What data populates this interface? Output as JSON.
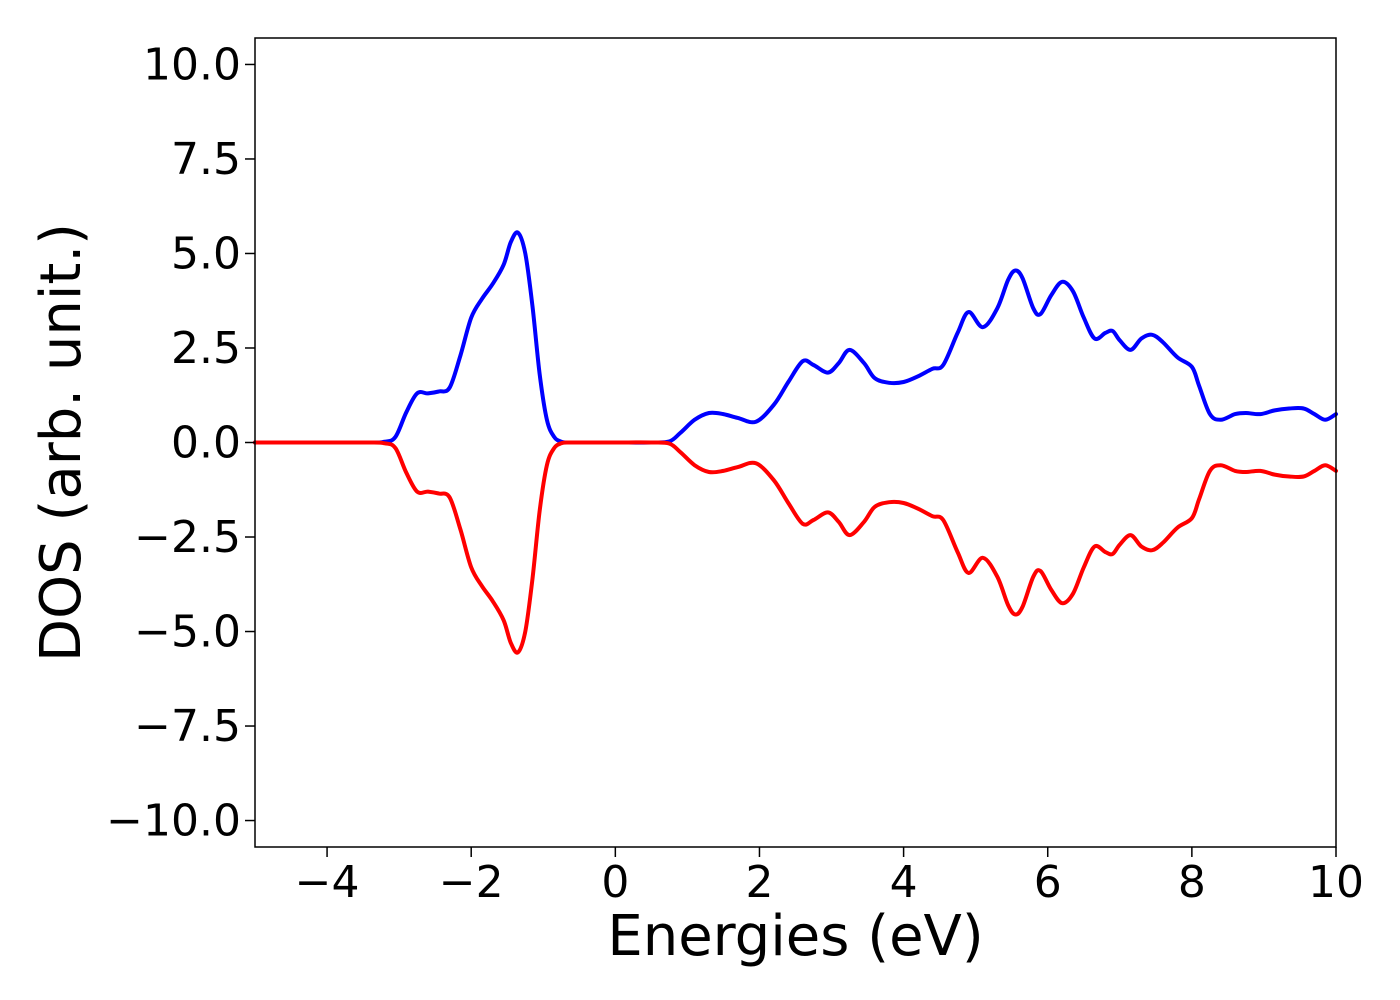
{
  "chart_data": {
    "type": "line",
    "title": "",
    "xlabel": "Energies (eV)",
    "ylabel": "DOS (arb. unit.)",
    "xlim": [
      -5,
      10
    ],
    "ylim": [
      -10.7,
      10.7
    ],
    "xticks": [
      -4,
      -2,
      0,
      2,
      4,
      6,
      8,
      10
    ],
    "xtick_labels": [
      "−4",
      "−2",
      "0",
      "2",
      "4",
      "6",
      "8",
      "10"
    ],
    "yticks": [
      10.0,
      7.5,
      5.0,
      2.5,
      0.0,
      -2.5,
      -5.0,
      -7.5,
      -10.0
    ],
    "ytick_labels": [
      "10.0",
      "7.5",
      "5.0",
      "2.5",
      "0.0",
      "−2.5",
      "−5.0",
      "−7.5",
      "−10.0"
    ],
    "grid": false,
    "legend": "none",
    "series": [
      {
        "color": "#0000ff",
        "x": [
          -5,
          -3.5,
          -3.2,
          -3.05,
          -2.9,
          -2.75,
          -2.6,
          -2.45,
          -2.3,
          -2.15,
          -2.0,
          -1.85,
          -1.7,
          -1.55,
          -1.45,
          -1.35,
          -1.25,
          -1.15,
          -1.05,
          -0.95,
          -0.85,
          -0.75,
          -0.65,
          -0.55,
          0.0,
          0.5,
          0.75,
          0.9,
          1.1,
          1.3,
          1.5,
          1.7,
          1.95,
          2.2,
          2.4,
          2.6,
          2.75,
          2.95,
          3.1,
          3.25,
          3.45,
          3.6,
          3.8,
          4.0,
          4.2,
          4.4,
          4.55,
          4.75,
          4.9,
          5.1,
          5.3,
          5.45,
          5.55,
          5.65,
          5.8,
          5.9,
          6.05,
          6.2,
          6.35,
          6.5,
          6.65,
          6.8,
          6.9,
          7.0,
          7.15,
          7.3,
          7.45,
          7.6,
          7.8,
          8.0,
          8.1,
          8.25,
          8.4,
          8.6,
          8.75,
          8.95,
          9.15,
          9.35,
          9.55,
          9.7,
          9.85,
          10.0
        ],
        "y": [
          0,
          0,
          0.02,
          0.15,
          0.8,
          1.3,
          1.3,
          1.35,
          1.45,
          2.3,
          3.3,
          3.8,
          4.2,
          4.7,
          5.3,
          5.55,
          5.0,
          3.6,
          1.8,
          0.6,
          0.15,
          0.02,
          0.0,
          0.0,
          0.0,
          0.0,
          0.03,
          0.25,
          0.6,
          0.78,
          0.75,
          0.65,
          0.55,
          1.0,
          1.6,
          2.15,
          2.05,
          1.85,
          2.1,
          2.45,
          2.1,
          1.7,
          1.58,
          1.6,
          1.75,
          1.95,
          2.05,
          2.9,
          3.45,
          3.05,
          3.55,
          4.3,
          4.55,
          4.35,
          3.55,
          3.4,
          3.9,
          4.25,
          4.0,
          3.3,
          2.75,
          2.9,
          2.95,
          2.7,
          2.45,
          2.75,
          2.85,
          2.65,
          2.25,
          2.0,
          1.5,
          0.75,
          0.6,
          0.75,
          0.78,
          0.75,
          0.85,
          0.9,
          0.9,
          0.75,
          0.6,
          0.75
        ]
      },
      {
        "color": "#ff0000",
        "x": [
          -5,
          -3.5,
          -3.2,
          -3.05,
          -2.9,
          -2.75,
          -2.6,
          -2.45,
          -2.3,
          -2.15,
          -2.0,
          -1.85,
          -1.7,
          -1.55,
          -1.45,
          -1.35,
          -1.25,
          -1.15,
          -1.05,
          -0.95,
          -0.85,
          -0.75,
          -0.65,
          -0.55,
          0.0,
          0.5,
          0.75,
          0.9,
          1.1,
          1.3,
          1.5,
          1.7,
          1.95,
          2.2,
          2.4,
          2.6,
          2.75,
          2.95,
          3.1,
          3.25,
          3.45,
          3.6,
          3.8,
          4.0,
          4.2,
          4.4,
          4.55,
          4.75,
          4.9,
          5.1,
          5.3,
          5.45,
          5.55,
          5.65,
          5.8,
          5.9,
          6.05,
          6.2,
          6.35,
          6.5,
          6.65,
          6.8,
          6.9,
          7.0,
          7.15,
          7.3,
          7.45,
          7.6,
          7.8,
          8.0,
          8.1,
          8.25,
          8.4,
          8.6,
          8.75,
          8.95,
          9.15,
          9.35,
          9.55,
          9.7,
          9.85,
          10.0
        ],
        "y": [
          0,
          0,
          -0.02,
          -0.15,
          -0.8,
          -1.3,
          -1.3,
          -1.35,
          -1.45,
          -2.3,
          -3.3,
          -3.8,
          -4.2,
          -4.7,
          -5.3,
          -5.55,
          -5.0,
          -3.6,
          -1.8,
          -0.6,
          -0.15,
          -0.02,
          0.0,
          0.0,
          0.0,
          0.0,
          -0.03,
          -0.25,
          -0.6,
          -0.78,
          -0.75,
          -0.65,
          -0.55,
          -1.0,
          -1.6,
          -2.15,
          -2.05,
          -1.85,
          -2.1,
          -2.45,
          -2.1,
          -1.7,
          -1.58,
          -1.6,
          -1.75,
          -1.95,
          -2.05,
          -2.9,
          -3.45,
          -3.05,
          -3.55,
          -4.3,
          -4.55,
          -4.35,
          -3.55,
          -3.4,
          -3.9,
          -4.25,
          -4.0,
          -3.3,
          -2.75,
          -2.9,
          -2.95,
          -2.7,
          -2.45,
          -2.75,
          -2.85,
          -2.65,
          -2.25,
          -2.0,
          -1.5,
          -0.75,
          -0.6,
          -0.75,
          -0.78,
          -0.75,
          -0.85,
          -0.9,
          -0.9,
          -0.75,
          -0.6,
          -0.75
        ]
      }
    ]
  }
}
